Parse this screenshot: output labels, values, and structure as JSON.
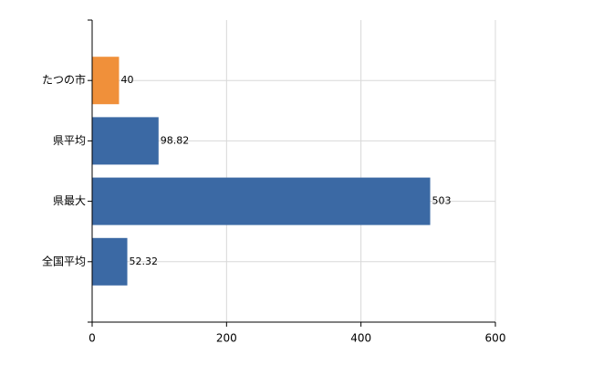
{
  "chart_data": {
    "type": "hbar",
    "categories": [
      "たつの市",
      "県平均",
      "県最大",
      "全国平均"
    ],
    "values": [
      40,
      98.82,
      503,
      52.32
    ],
    "colors": [
      "#f0903a",
      "#3b69a4",
      "#3b69a4",
      "#3b69a4"
    ],
    "xlim": [
      0,
      600
    ],
    "xticks": [
      0,
      200,
      400,
      600
    ],
    "grid": true
  }
}
